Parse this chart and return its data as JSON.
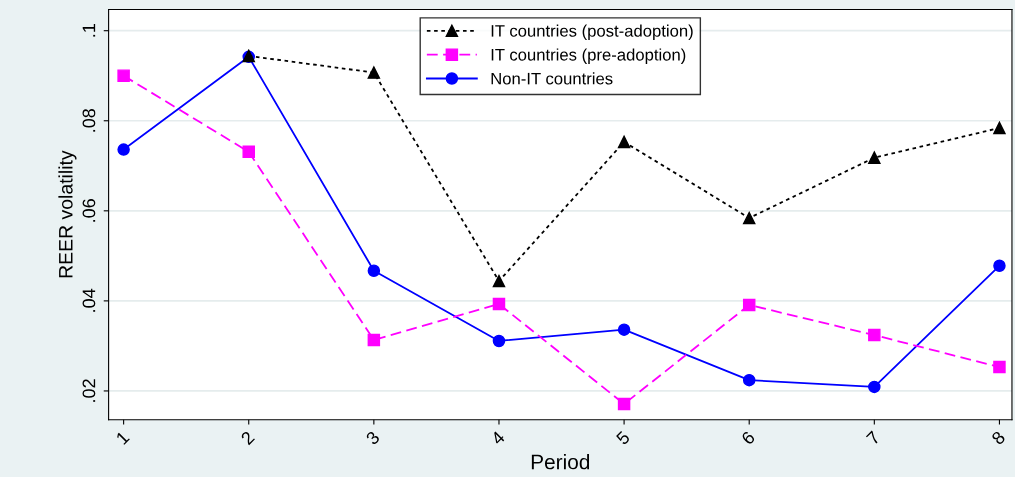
{
  "chart_data": {
    "type": "line",
    "xlabel": "Period",
    "ylabel": "REER volatility",
    "x": [
      1,
      2,
      3,
      4,
      5,
      6,
      7,
      8
    ],
    "series": [
      {
        "name": "IT countries (post-adoption)",
        "color": "#000000",
        "marker": "triangle",
        "line_style": "dotted",
        "values": [
          null,
          0.0944,
          0.0907,
          0.0444,
          0.0753,
          0.0584,
          0.0718,
          0.0784
        ]
      },
      {
        "name": "IT countries (pre-adoption)",
        "color": "#ff00ff",
        "marker": "square",
        "line_style": "dashed",
        "values": [
          0.09,
          0.0731,
          0.0313,
          0.0393,
          0.0171,
          0.0391,
          0.0324,
          0.0253
        ]
      },
      {
        "name": "Non-IT countries",
        "color": "#0000ff",
        "marker": "circle",
        "line_style": "solid",
        "values": [
          0.0736,
          0.0942,
          0.0467,
          0.0311,
          0.0336,
          0.0224,
          0.0209,
          0.0478
        ]
      }
    ],
    "xlim": [
      0.88,
      8.1
    ],
    "ylim": [
      0.0136,
      0.1047
    ],
    "xticks": [
      1,
      2,
      3,
      4,
      5,
      6,
      7,
      8
    ],
    "yticks": [
      {
        "value": 0.02,
        "label": ".02"
      },
      {
        "value": 0.04,
        "label": ".04"
      },
      {
        "value": 0.06,
        "label": ".06"
      },
      {
        "value": 0.08,
        "label": ".08"
      },
      {
        "value": 0.1,
        "label": ".1"
      }
    ],
    "grid": "y",
    "legend": "top"
  }
}
